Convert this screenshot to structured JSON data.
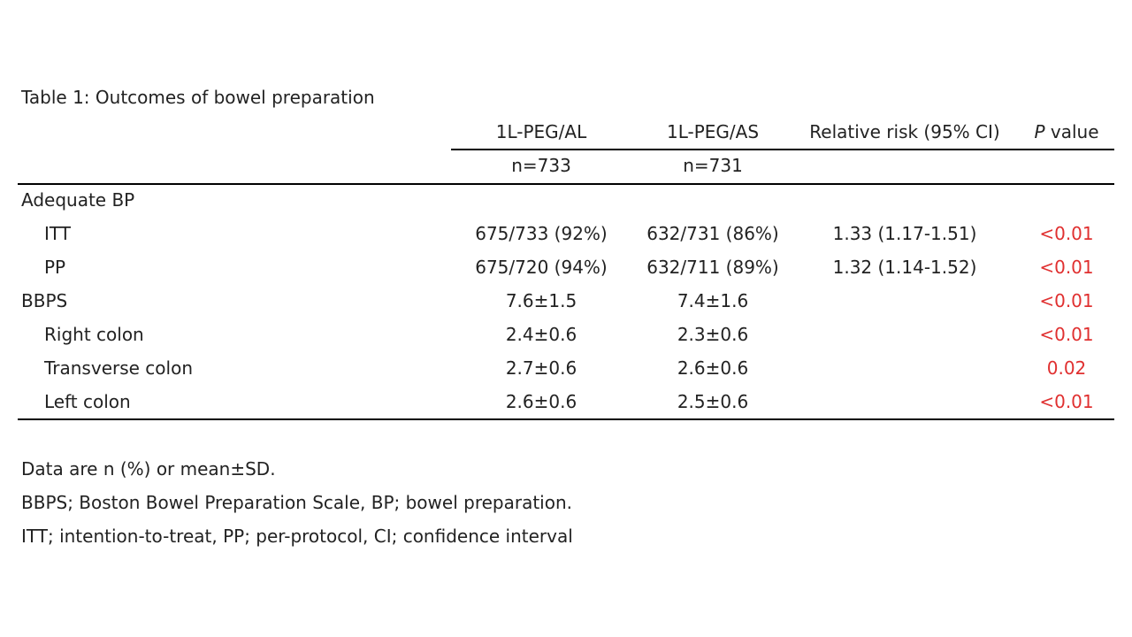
{
  "caption": "Table 1: Outcomes of bowel preparation",
  "header": {
    "group1": "1L-PEG/AL",
    "group2": "1L-PEG/AS",
    "rr": "Relative risk (95% CI)",
    "p_italic": "P",
    "p_rest": " value",
    "n1": "n=733",
    "n2": "n=731"
  },
  "rows": [
    {
      "label": "Adequate BP",
      "g1": "",
      "g2": "",
      "rr": "",
      "p": ""
    },
    {
      "label": "ITT",
      "g1": "675/733 (92%)",
      "g2": "632/731 (86%)",
      "rr": "1.33 (1.17-1.51)",
      "p": "<0.01"
    },
    {
      "label": "PP",
      "g1": "675/720 (94%)",
      "g2": "632/711 (89%)",
      "rr": "1.32 (1.14-1.52)",
      "p": "<0.01"
    },
    {
      "label": "BBPS",
      "g1": "7.6±1.5",
      "g2": "7.4±1.6",
      "rr": "",
      "p": "<0.01"
    },
    {
      "label": "Right colon",
      "g1": "2.4±0.6",
      "g2": "2.3±0.6",
      "rr": "",
      "p": "<0.01"
    },
    {
      "label": "Transverse colon",
      "g1": "2.7±0.6",
      "g2": "2.6±0.6",
      "rr": "",
      "p": "0.02"
    },
    {
      "label": "Left colon",
      "g1": "2.6±0.6",
      "g2": "2.5±0.6",
      "rr": "",
      "p": "<0.01"
    }
  ],
  "notes": [
    "Data are n (%) or mean±SD.",
    "BBPS; Boston Bowel Preparation Scale, BP; bowel preparation.",
    "ITT; intention-to-treat, PP; per-protocol, CI; confidence interval"
  ],
  "colors": {
    "text": "#222222",
    "p_value": "#e03030",
    "rule": "#000000"
  }
}
